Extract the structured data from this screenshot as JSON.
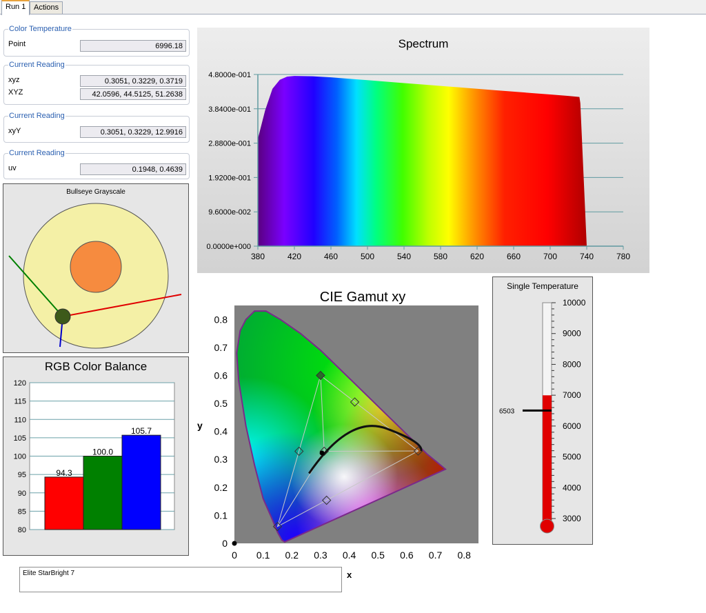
{
  "tabs": [
    {
      "label": "Run 1",
      "active": true
    },
    {
      "label": "Actions",
      "active": false
    }
  ],
  "readings": {
    "color_temperature": {
      "title": "Color Temperature",
      "label": "Point",
      "value": "6996.18"
    },
    "xyz_reading": {
      "title": "Current Reading",
      "xyz_label": "xyz",
      "xyz_value": "0.3051, 0.3229, 0.3719",
      "XYZ_label": "XYZ",
      "XYZ_value": "42.0596, 44.5125, 51.2638"
    },
    "xyY_reading": {
      "title": "Current Reading",
      "label": "xyY",
      "value": "0.3051, 0.3229, 12.9916"
    },
    "uv_reading": {
      "title": "Current Reading",
      "label": "uv",
      "value": "0.1948, 0.4639"
    }
  },
  "bullseye": {
    "title": "Bullseye Grayscale"
  },
  "rgb_balance": {
    "title": "RGB Color Balance"
  },
  "spectrum": {
    "title": "Spectrum"
  },
  "cie": {
    "title": "CIE Gamut xy",
    "xlabel": "x",
    "ylabel": "y"
  },
  "thermometer": {
    "title": "Single Temperature",
    "marker_label": "6503"
  },
  "note": {
    "text": "Elite StarBright 7"
  },
  "chart_data": [
    {
      "type": "bar",
      "title": "RGB Color Balance",
      "categories": [
        "Red",
        "Green",
        "Blue"
      ],
      "values": [
        94.3,
        100.0,
        105.7
      ],
      "value_labels": [
        "94.3",
        "100.0",
        "105.7"
      ],
      "colors": [
        "#ff0000",
        "#008000",
        "#0000ff"
      ],
      "ylim": [
        80,
        120
      ],
      "yticks": [
        "80",
        "85",
        "90",
        "95",
        "100",
        "105",
        "110",
        "115",
        "120"
      ]
    },
    {
      "type": "area",
      "title": "Spectrum",
      "x": [
        380,
        388,
        396,
        404,
        412,
        420,
        440,
        460,
        480,
        500,
        520,
        540,
        560,
        580,
        600,
        620,
        640,
        660,
        680,
        700,
        720,
        732,
        733,
        740
      ],
      "y": [
        0.3,
        0.38,
        0.44,
        0.465,
        0.474,
        0.476,
        0.475,
        0.472,
        0.468,
        0.464,
        0.46,
        0.456,
        0.452,
        0.448,
        0.444,
        0.44,
        0.436,
        0.432,
        0.428,
        0.424,
        0.42,
        0.417,
        0.4,
        0.0
      ],
      "xlim": [
        380,
        780
      ],
      "ylim": [
        0,
        0.48
      ],
      "xticks": [
        "380",
        "420",
        "460",
        "500",
        "540",
        "580",
        "620",
        "660",
        "700",
        "740",
        "780"
      ],
      "yticks": [
        "0.0000e+000",
        "9.6000e-002",
        "1.9200e-001",
        "2.8800e-001",
        "3.8400e-001",
        "4.8000e-001"
      ]
    },
    {
      "type": "scatter",
      "title": "CIE Gamut xy",
      "xlabel": "x",
      "ylabel": "y",
      "xlim": [
        0,
        0.85
      ],
      "ylim": [
        0,
        0.85
      ],
      "xticks": [
        "0",
        "0.1",
        "0.2",
        "0.3",
        "0.4",
        "0.5",
        "0.6",
        "0.7",
        "0.8"
      ],
      "yticks": [
        "0",
        "0.1",
        "0.2",
        "0.3",
        "0.4",
        "0.5",
        "0.6",
        "0.7",
        "0.8"
      ],
      "gamut_triangle": [
        [
          0.64,
          0.33
        ],
        [
          0.3,
          0.6
        ],
        [
          0.15,
          0.06
        ]
      ],
      "gamut_secondaries": [
        [
          0.225,
          0.329
        ],
        [
          0.419,
          0.505
        ],
        [
          0.321,
          0.154
        ]
      ],
      "measured_white": [
        0.3051,
        0.3229
      ],
      "white_target": [
        0.3127,
        0.329
      ],
      "measured_green": [
        0.3,
        0.6
      ]
    },
    {
      "type": "gauge",
      "title": "Single Temperature",
      "ticks": [
        "3000",
        "4000",
        "5000",
        "6000",
        "7000",
        "8000",
        "9000",
        "10000"
      ],
      "range": [
        3000,
        10000
      ],
      "level": 6996.18,
      "marker": 6503
    }
  ]
}
